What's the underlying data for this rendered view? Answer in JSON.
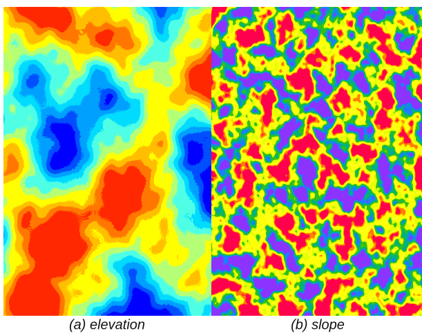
{
  "panels": [
    {
      "caption": "(a) elevation"
    },
    {
      "caption": "(b) slope"
    }
  ]
}
